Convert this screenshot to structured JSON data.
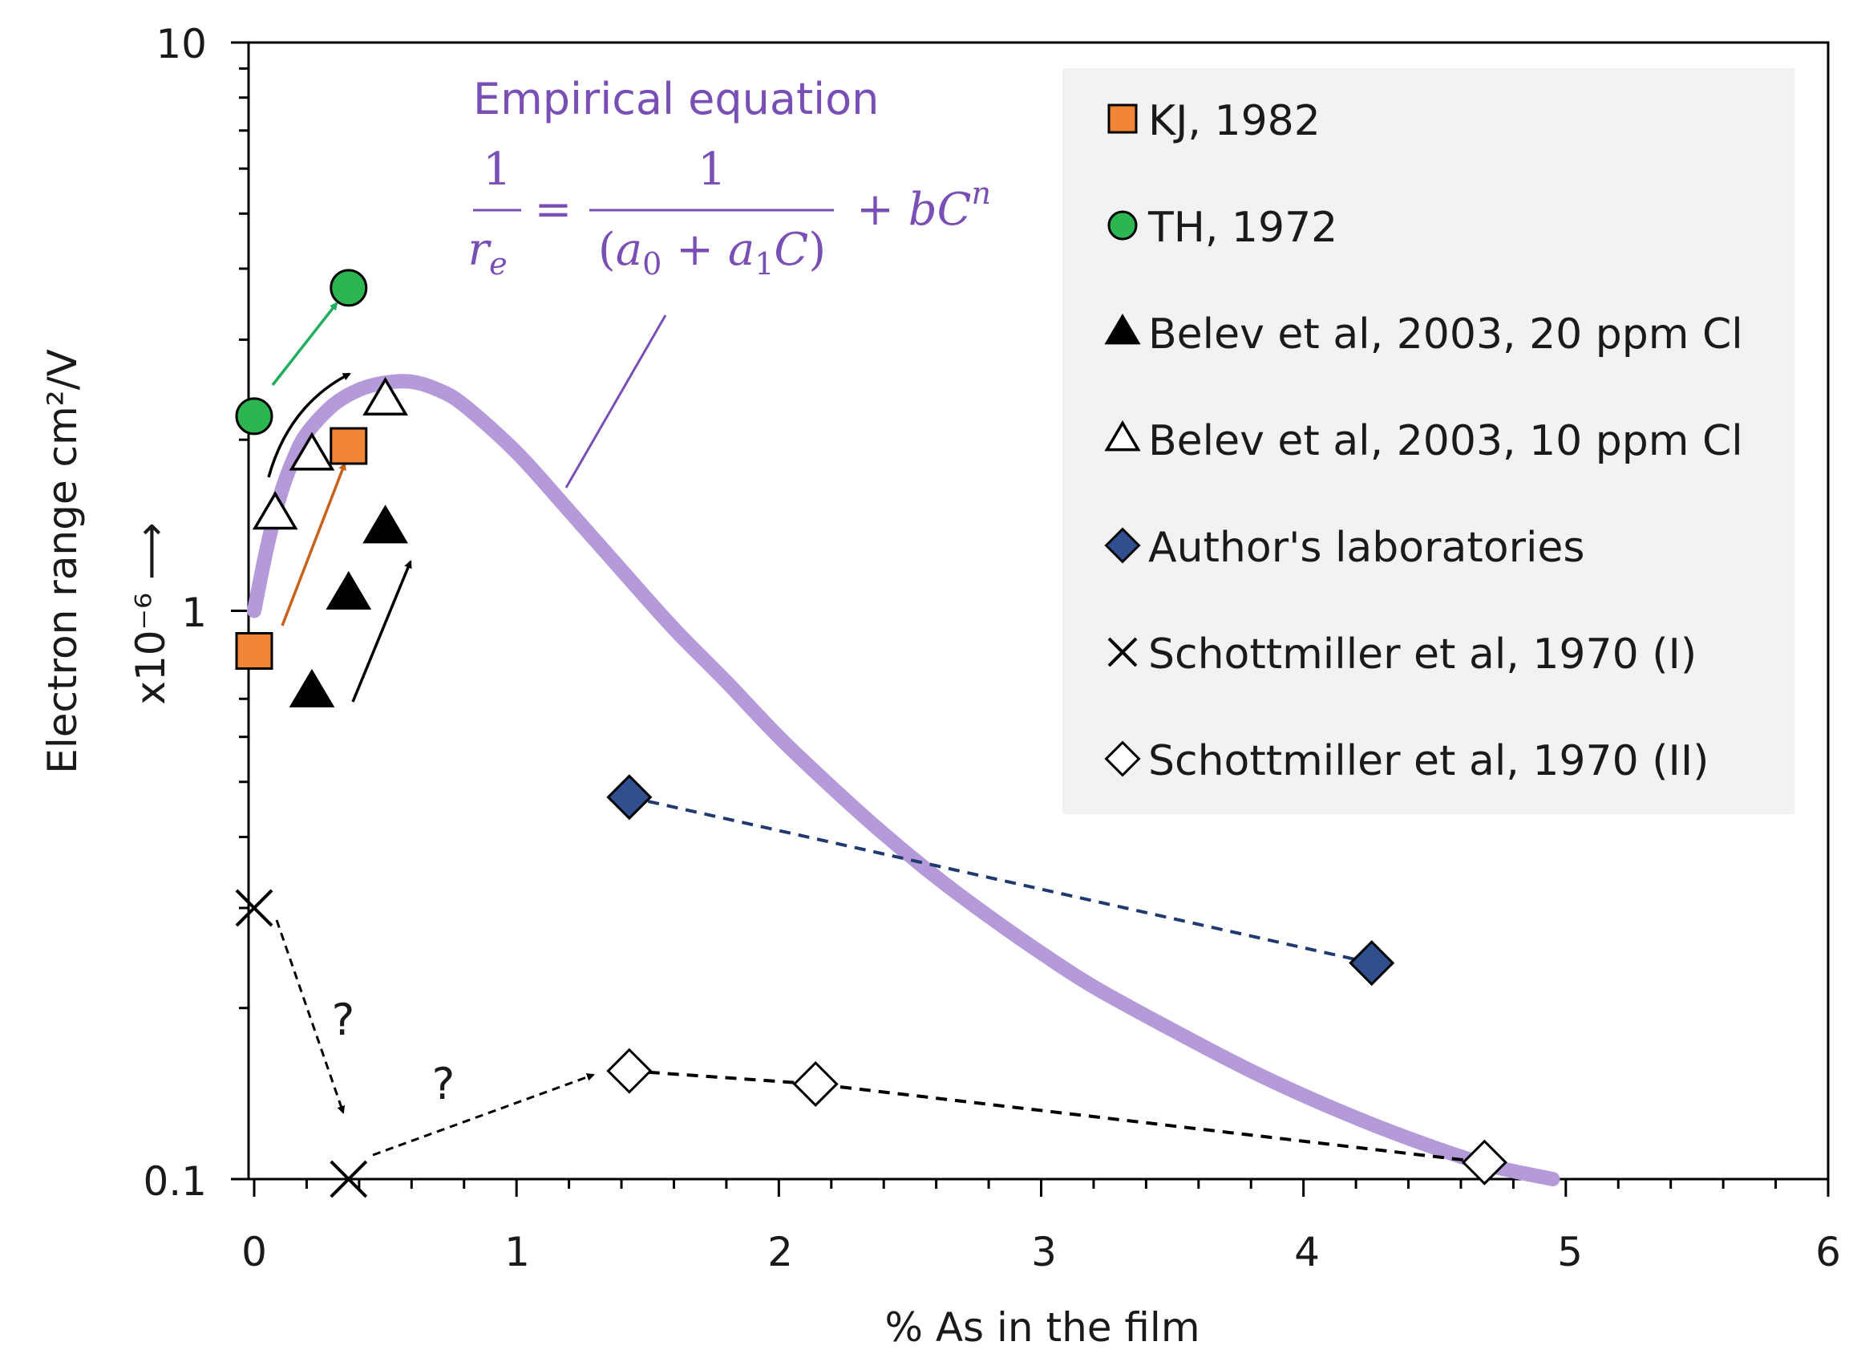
{
  "chart_data": {
    "type": "scatter",
    "title": "",
    "xlabel": "% As in the film",
    "ylabel": "Electron range cm²/V",
    "yscale_label": "x10⁻⁶ ⟶",
    "xlim": [
      0,
      6
    ],
    "ylim": [
      0.1,
      10
    ],
    "yscale": "log",
    "x_ticks": [
      "0",
      "1",
      "2",
      "3",
      "4",
      "5",
      "6"
    ],
    "y_ticks": [
      "0.1",
      "1",
      "10"
    ],
    "legend_position": "top-right",
    "annotation": {
      "title": "Empirical equation",
      "equation": "1/r_e = 1/(a_0 + a_1 C) + bC^n"
    },
    "curve": {
      "name": "Empirical equation",
      "color": "#b59ad9",
      "x": [
        0,
        0.05,
        0.1,
        0.15,
        0.2,
        0.3,
        0.4,
        0.5,
        0.6,
        0.7,
        0.8,
        1.0,
        1.2,
        1.4,
        1.6,
        1.8,
        2.0,
        2.2,
        2.4,
        2.6,
        2.8,
        3.0,
        3.2,
        3.5,
        3.8,
        4.1,
        4.4,
        4.7,
        4.95
      ],
      "y": [
        1.0,
        1.3,
        1.6,
        1.85,
        2.05,
        2.3,
        2.45,
        2.52,
        2.53,
        2.45,
        2.3,
        1.9,
        1.5,
        1.18,
        0.93,
        0.75,
        0.6,
        0.49,
        0.405,
        0.34,
        0.29,
        0.25,
        0.218,
        0.183,
        0.155,
        0.134,
        0.118,
        0.106,
        0.1
      ]
    },
    "series": [
      {
        "name": "KJ, 1982",
        "marker": "square",
        "color": "#f08535",
        "x": [
          0,
          0.36
        ],
        "y": [
          0.85,
          1.95
        ]
      },
      {
        "name": "TH, 1972",
        "marker": "circle",
        "color": "#2db552",
        "x": [
          0,
          0.36
        ],
        "y": [
          2.2,
          3.7
        ]
      },
      {
        "name": "Belev et al, 2003, 20 ppm Cl",
        "marker": "triangle-filled",
        "color": "#000000",
        "x": [
          0.22,
          0.36,
          0.5
        ],
        "y": [
          0.72,
          1.07,
          1.4
        ]
      },
      {
        "name": "Belev et al, 2003, 10 ppm Cl",
        "marker": "triangle-open",
        "color": "#000000",
        "x": [
          0.08,
          0.22,
          0.5
        ],
        "y": [
          1.48,
          1.88,
          2.35
        ]
      },
      {
        "name": "Author's laboratories",
        "marker": "diamond-filled",
        "color": "#2f4f8f",
        "x": [
          1.43,
          4.26
        ],
        "y": [
          0.47,
          0.24
        ],
        "dashed": true
      },
      {
        "name": "Schottmiller et al, 1970 (I)",
        "marker": "x",
        "color": "#000000",
        "x": [
          0,
          0.36
        ],
        "y": [
          0.3,
          0.1
        ]
      },
      {
        "name": "Schottmiller et al, 1970 (II)",
        "marker": "diamond-open",
        "color": "#000000",
        "x": [
          1.43,
          2.14,
          4.69
        ],
        "y": [
          0.155,
          0.147,
          0.107
        ],
        "dashed": true
      }
    ],
    "question_marks": [
      "?",
      "?"
    ]
  }
}
